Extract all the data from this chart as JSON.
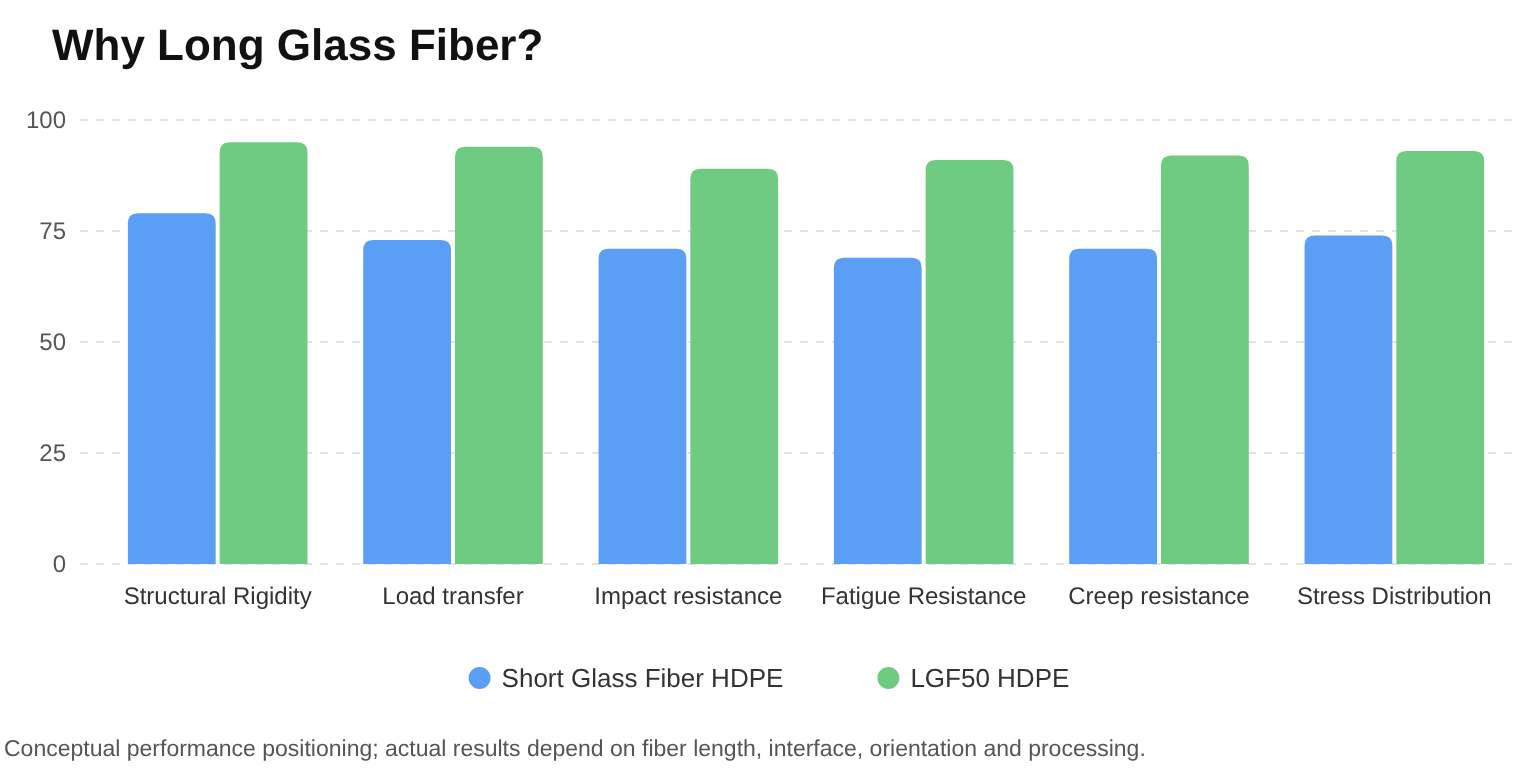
{
  "chart_data": {
    "type": "bar",
    "title": "Why Long Glass Fiber?",
    "categories": [
      "Structural Rigidity",
      "Load transfer",
      "Impact resistance",
      "Fatigue Resistance",
      "Creep resistance",
      "Stress Distribution"
    ],
    "series": [
      {
        "name": "Short Glass Fiber HDPE",
        "color": "#5b9ef5",
        "values": [
          79,
          73,
          71,
          69,
          71,
          74
        ]
      },
      {
        "name": "LGF50 HDPE",
        "color": "#6fca82",
        "values": [
          95,
          94,
          89,
          91,
          92,
          93
        ]
      }
    ],
    "ylim": [
      0,
      100
    ],
    "yticks": [
      0,
      25,
      50,
      75,
      100
    ],
    "grid": "y",
    "legend": "bottom",
    "annotations": [
      "Conceptual performance positioning; actual results depend on fiber length, interface, orientation and processing."
    ]
  }
}
